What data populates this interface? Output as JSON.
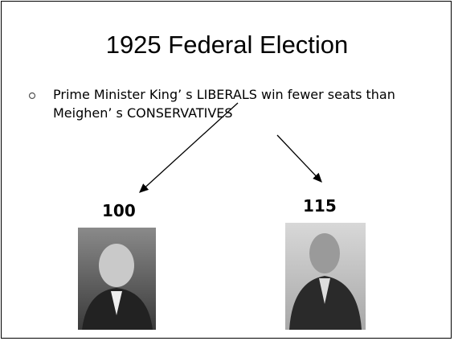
{
  "slide": {
    "title": "1925 Federal Election",
    "bullets": [
      "Prime Minister King’ s LIBERALS win fewer seats than Meighen’ s CONSERVATIVES"
    ],
    "labels": [
      "100",
      "115"
    ]
  }
}
